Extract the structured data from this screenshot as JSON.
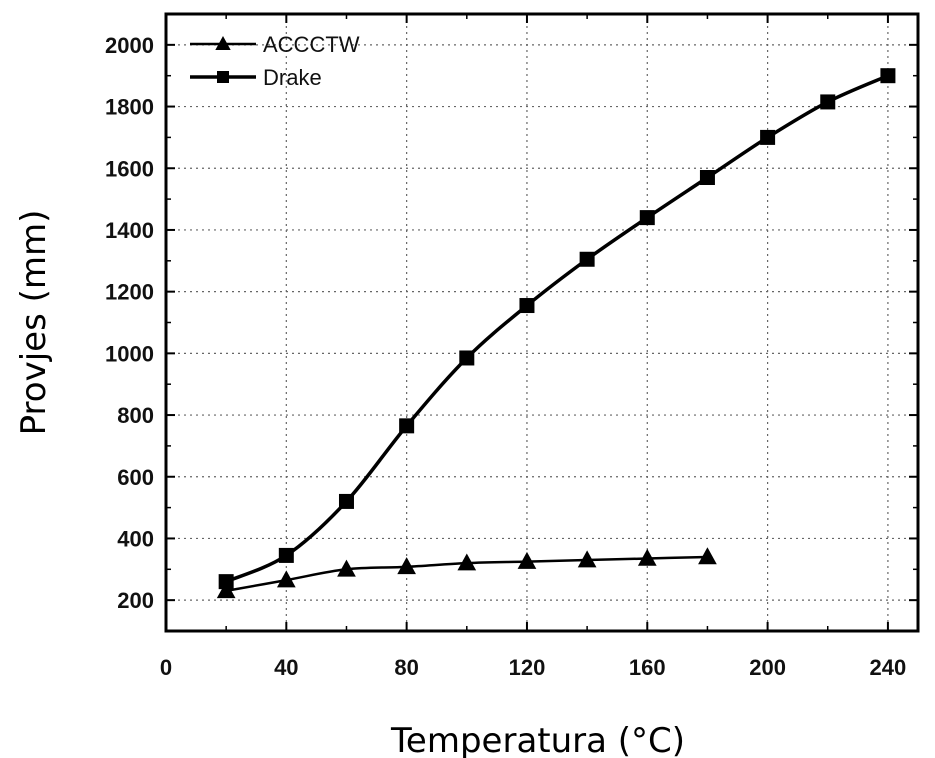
{
  "chart_data": {
    "type": "line",
    "xlabel": "Temperatura (°C)",
    "ylabel": "Provjes (mm)",
    "xlim": [
      0,
      250
    ],
    "ylim": [
      100,
      2100
    ],
    "xticks": [
      0,
      40,
      80,
      120,
      160,
      200,
      240
    ],
    "yticks": [
      200,
      400,
      600,
      800,
      1000,
      1200,
      1400,
      1600,
      1800,
      2000
    ],
    "grid": true,
    "legend_position": "top-left",
    "axis_title_color": "#1f5a8a",
    "series": [
      {
        "name": "ACCCTW",
        "marker": "triangle",
        "color": "#000000",
        "x": [
          20,
          40,
          60,
          80,
          100,
          120,
          140,
          160,
          180
        ],
        "y": [
          230,
          265,
          300,
          308,
          320,
          325,
          330,
          335,
          340
        ]
      },
      {
        "name": "Drake",
        "marker": "square",
        "color": "#000000",
        "x": [
          20,
          40,
          60,
          80,
          100,
          120,
          140,
          160,
          180,
          200,
          220,
          240
        ],
        "y": [
          260,
          345,
          520,
          765,
          985,
          1155,
          1305,
          1440,
          1570,
          1700,
          1815,
          1900
        ]
      }
    ]
  }
}
